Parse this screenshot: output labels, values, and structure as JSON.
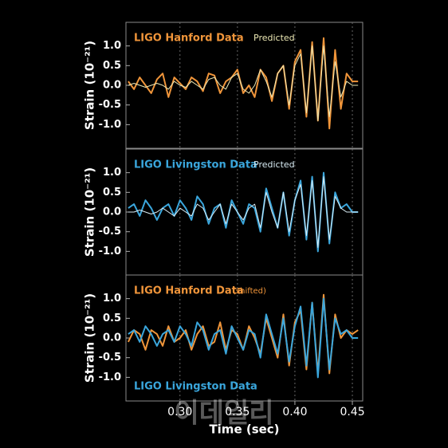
{
  "chart_data": [
    {
      "type": "line",
      "ylabel": "Strain (10⁻²¹)",
      "x": [
        0.255,
        0.26,
        0.265,
        0.27,
        0.275,
        0.28,
        0.285,
        0.29,
        0.295,
        0.3,
        0.305,
        0.31,
        0.315,
        0.32,
        0.325,
        0.33,
        0.335,
        0.34,
        0.345,
        0.35,
        0.355,
        0.36,
        0.365,
        0.37,
        0.375,
        0.38,
        0.385,
        0.39,
        0.395,
        0.4,
        0.405,
        0.41,
        0.415,
        0.42,
        0.425,
        0.43,
        0.435,
        0.44,
        0.445,
        0.45,
        0.455
      ],
      "series": [
        {
          "name": "LIGO Hanford Data",
          "color": "#f0953a",
          "width": 2,
          "legend": "top-left",
          "values": [
            0.1,
            -0.1,
            0.2,
            0.0,
            -0.2,
            0.15,
            0.3,
            -0.3,
            0.2,
            0.05,
            -0.1,
            0.2,
            0.1,
            -0.15,
            0.3,
            0.25,
            -0.2,
            0.1,
            0.2,
            0.4,
            -0.2,
            0.0,
            -0.3,
            0.4,
            0.2,
            -0.4,
            0.3,
            0.5,
            -0.6,
            0.6,
            0.9,
            -0.8,
            1.1,
            -0.9,
            1.2,
            -1.1,
            0.9,
            -0.6,
            0.3,
            0.1,
            0.1
          ]
        },
        {
          "name": "Predicted",
          "color": "#ece8b4",
          "width": 1,
          "legend": "top-middle",
          "values": [
            0.0,
            0.05,
            0.0,
            -0.05,
            0.0,
            0.05,
            0.0,
            -0.1,
            0.1,
            0.0,
            -0.05,
            0.1,
            0.0,
            -0.1,
            0.15,
            0.2,
            0.0,
            -0.1,
            0.2,
            0.3,
            -0.1,
            -0.2,
            0.0,
            0.4,
            0.1,
            -0.3,
            0.3,
            0.5,
            -0.5,
            0.5,
            0.8,
            -0.7,
            1.0,
            -0.9,
            1.0,
            -0.8,
            0.6,
            -0.3,
            0.1,
            0.0,
            0.0
          ]
        }
      ],
      "xlim": [
        0.253,
        0.459
      ],
      "xticks": [
        {
          "value": 0.3,
          "label": "0.30"
        },
        0.35,
        {
          "value": 0.4,
          "label": "0.40"
        },
        0.45
      ],
      "ylim": [
        -1.6,
        1.6
      ],
      "yticks": [
        {
          "value": 1,
          "label": "1.0"
        },
        0.5,
        {
          "value": 0,
          "label": "0.0"
        },
        -0.5,
        {
          "value": -1,
          "label": "-1.0"
        }
      ],
      "grid": "x"
    },
    {
      "type": "line",
      "ylabel": "Strain (10⁻²¹)",
      "x": [
        0.255,
        0.26,
        0.265,
        0.27,
        0.275,
        0.28,
        0.285,
        0.29,
        0.295,
        0.3,
        0.305,
        0.31,
        0.315,
        0.32,
        0.325,
        0.33,
        0.335,
        0.34,
        0.345,
        0.35,
        0.355,
        0.36,
        0.365,
        0.37,
        0.375,
        0.38,
        0.385,
        0.39,
        0.395,
        0.4,
        0.405,
        0.41,
        0.415,
        0.42,
        0.425,
        0.43,
        0.435,
        0.44,
        0.445,
        0.45,
        0.455
      ],
      "series": [
        {
          "name": "LIGO Livingston Data",
          "color": "#3aa6dc",
          "width": 2,
          "legend": "top-left",
          "values": [
            0.1,
            0.2,
            -0.1,
            0.3,
            0.1,
            -0.2,
            0.1,
            0.2,
            -0.1,
            0.3,
            0.1,
            -0.2,
            0.4,
            0.2,
            -0.3,
            0.1,
            0.2,
            -0.4,
            0.3,
            0.0,
            -0.3,
            0.2,
            0.1,
            -0.5,
            0.6,
            0.1,
            -0.4,
            0.5,
            -0.6,
            0.3,
            0.8,
            -0.7,
            0.9,
            -1.0,
            1.0,
            -0.8,
            0.5,
            0.1,
            0.2,
            0.0,
            0.0
          ]
        },
        {
          "name": "Predicted",
          "color": "#d8ecf4",
          "width": 1,
          "legend": "top-middle",
          "values": [
            0.0,
            0.0,
            0.05,
            0.0,
            -0.05,
            0.0,
            0.1,
            0.0,
            -0.1,
            0.1,
            0.0,
            -0.1,
            0.2,
            0.1,
            -0.2,
            0.0,
            0.2,
            -0.3,
            0.2,
            0.0,
            -0.2,
            0.1,
            0.2,
            -0.4,
            0.5,
            0.0,
            -0.4,
            0.5,
            -0.5,
            0.3,
            0.7,
            -0.6,
            0.8,
            -0.9,
            0.9,
            -0.7,
            0.4,
            0.1,
            0.0,
            0.0,
            0.0
          ]
        }
      ],
      "xlim": [
        0.253,
        0.459
      ],
      "xticks": [
        {
          "value": 0.3,
          "label": "0.30"
        },
        0.35,
        {
          "value": 0.4,
          "label": "0.40"
        },
        0.45
      ],
      "ylim": [
        -1.6,
        1.6
      ],
      "yticks": [
        {
          "value": 1,
          "label": "1.0"
        },
        0.5,
        {
          "value": 0,
          "label": "0.0"
        },
        -0.5,
        {
          "value": -1,
          "label": "-1.0"
        }
      ],
      "grid": "x"
    },
    {
      "type": "line",
      "ylabel": "Strain (10⁻²¹)",
      "xlabel": "Time (sec)",
      "annotation": "(shifted)",
      "x": [
        0.255,
        0.26,
        0.265,
        0.27,
        0.275,
        0.28,
        0.285,
        0.29,
        0.295,
        0.3,
        0.305,
        0.31,
        0.315,
        0.32,
        0.325,
        0.33,
        0.335,
        0.34,
        0.345,
        0.35,
        0.355,
        0.36,
        0.365,
        0.37,
        0.375,
        0.38,
        0.385,
        0.39,
        0.395,
        0.4,
        0.405,
        0.41,
        0.415,
        0.42,
        0.425,
        0.43,
        0.435,
        0.44,
        0.445,
        0.45,
        0.455
      ],
      "series": [
        {
          "name": "LIGO Hanford Data",
          "color": "#f0953a",
          "width": 2,
          "legend": "top-left",
          "values": [
            -0.1,
            0.2,
            0.1,
            -0.3,
            0.2,
            0.1,
            -0.2,
            0.3,
            -0.1,
            0.0,
            0.2,
            -0.3,
            0.1,
            0.3,
            -0.2,
            -0.1,
            0.4,
            -0.3,
            0.2,
            0.1,
            -0.3,
            0.3,
            0.0,
            -0.4,
            0.5,
            0.0,
            -0.5,
            0.6,
            -0.7,
            0.4,
            0.7,
            -0.8,
            0.9,
            -0.9,
            1.1,
            -0.9,
            0.6,
            0.0,
            0.2,
            0.1,
            0.2
          ]
        },
        {
          "name": "LIGO Livingston Data",
          "color": "#3aa6dc",
          "width": 2,
          "legend": "bottom-left",
          "values": [
            0.1,
            0.2,
            -0.1,
            0.3,
            0.1,
            -0.2,
            0.1,
            0.2,
            -0.1,
            0.3,
            0.1,
            -0.2,
            0.4,
            0.2,
            -0.3,
            0.1,
            0.2,
            -0.4,
            0.3,
            0.0,
            -0.3,
            0.2,
            0.1,
            -0.5,
            0.6,
            0.1,
            -0.4,
            0.5,
            -0.6,
            0.3,
            0.8,
            -0.7,
            0.9,
            -1.0,
            1.0,
            -0.8,
            0.5,
            0.1,
            0.2,
            0.0,
            0.0
          ]
        }
      ],
      "xlim": [
        0.253,
        0.459
      ],
      "xticks": [
        {
          "value": 0.3,
          "label": "0.30"
        },
        0.35,
        {
          "value": 0.4,
          "label": "0.40"
        },
        0.45
      ],
      "ylim": [
        -1.6,
        1.6
      ],
      "yticks": [
        {
          "value": 1,
          "label": "1.0"
        },
        0.5,
        {
          "value": 0,
          "label": "0.0"
        },
        -0.5,
        {
          "value": -1,
          "label": "-1.0"
        }
      ],
      "grid": "x"
    }
  ],
  "watermark": "이데일리"
}
